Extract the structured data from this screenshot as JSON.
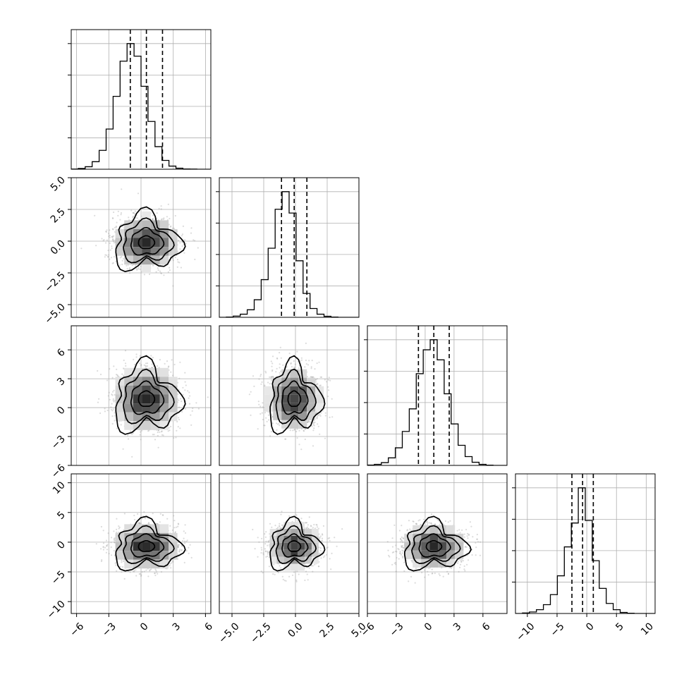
{
  "chart_data": {
    "type": "corner",
    "title": "",
    "parameters": [
      {
        "hist_range": [
          -6.5,
          6.5
        ],
        "mean": 0.5,
        "sd": 1.5,
        "quantiles": [
          -1.0,
          0.5,
          2.0
        ],
        "ticks": [
          -6,
          -3,
          0,
          3,
          6
        ],
        "tick_labels": [
          "−6",
          "−3",
          "0",
          "3",
          "6"
        ]
      },
      {
        "hist_range": [
          -6.0,
          5.0
        ],
        "mean": -0.1,
        "sd": 1.0,
        "quantiles": [
          -1.1,
          -0.1,
          0.9
        ],
        "ticks": [
          -5.0,
          -2.5,
          0.0,
          2.5,
          5.0
        ],
        "tick_labels": [
          "−5.0",
          "−2.5",
          "0.0",
          "2.5",
          "5.0"
        ]
      },
      {
        "hist_range": [
          -6.0,
          8.5
        ],
        "mean": 0.9,
        "sd": 1.6,
        "quantiles": [
          -0.7,
          0.9,
          2.5
        ],
        "ticks": [
          -6,
          -3,
          0,
          3,
          6
        ],
        "tick_labels": [
          "−6",
          "−3",
          "0",
          "3",
          "6"
        ]
      },
      {
        "hist_range": [
          -12.0,
          11.5
        ],
        "mean": -0.7,
        "sd": 1.8,
        "quantiles": [
          -2.5,
          -0.7,
          1.1
        ],
        "ticks": [
          -10,
          -5,
          0,
          5,
          10
        ],
        "tick_labels": [
          "−10",
          "−5",
          "0",
          "5",
          "10"
        ]
      }
    ],
    "marginal_histograms": [
      {
        "param": 0,
        "bin_edges": [
          -6.5,
          -5.85,
          -5.2,
          -4.55,
          -3.9,
          -3.25,
          -2.6,
          -1.95,
          -1.3,
          -0.65,
          0,
          0.65,
          1.3,
          1.95,
          2.6,
          3.25,
          3.9,
          4.55,
          5.2,
          5.85,
          6.5
        ],
        "counts": [
          0.001,
          0.006,
          0.02,
          0.06,
          0.15,
          0.32,
          0.58,
          0.86,
          1.0,
          0.9,
          0.66,
          0.38,
          0.18,
          0.07,
          0.025,
          0.008,
          0.002,
          0.001,
          0,
          0
        ]
      },
      {
        "param": 1,
        "bin_edges": [
          -6.0,
          -5.45,
          -4.9,
          -4.35,
          -3.8,
          -3.25,
          -2.7,
          -2.15,
          -1.6,
          -1.05,
          -0.5,
          0.05,
          0.6,
          1.15,
          1.7,
          2.25,
          2.8,
          3.35,
          3.9,
          4.45,
          5.0
        ],
        "counts": [
          0,
          0.002,
          0.01,
          0.025,
          0.06,
          0.14,
          0.3,
          0.55,
          0.86,
          1.0,
          0.83,
          0.45,
          0.19,
          0.07,
          0.025,
          0.008,
          0.002,
          0,
          0,
          0
        ]
      },
      {
        "param": 2,
        "bin_edges": [
          -6.0,
          -5.275,
          -4.55,
          -3.825,
          -3.1,
          -2.375,
          -1.65,
          -0.925,
          -0.2,
          0.525,
          1.25,
          1.975,
          2.7,
          3.425,
          4.15,
          4.875,
          5.6,
          6.325,
          7.05,
          7.775,
          8.5
        ],
        "counts": [
          0.003,
          0.008,
          0.022,
          0.06,
          0.14,
          0.27,
          0.45,
          0.73,
          0.92,
          1.0,
          0.84,
          0.57,
          0.33,
          0.16,
          0.07,
          0.025,
          0.008,
          0.002,
          0,
          0
        ]
      },
      {
        "param": 3,
        "bin_edges": [
          -12.0,
          -10.825,
          -9.65,
          -8.475,
          -7.3,
          -6.125,
          -4.95,
          -3.775,
          -2.6,
          -1.425,
          -0.25,
          0.925,
          2.1,
          3.275,
          4.45,
          5.625,
          6.8,
          7.975,
          9.15,
          10.325,
          11.5
        ],
        "counts": [
          0,
          0.004,
          0.012,
          0.03,
          0.07,
          0.15,
          0.3,
          0.53,
          0.72,
          1.0,
          0.74,
          0.42,
          0.2,
          0.08,
          0.03,
          0.008,
          0.002,
          0,
          0,
          0
        ]
      }
    ],
    "joint_densities": [
      {
        "x_param": 0,
        "y_param": 1,
        "x_center": 0.5,
        "y_center": -0.1,
        "contour_levels_sigma": [
          0.5,
          1.0,
          1.5,
          2.0
        ]
      },
      {
        "x_param": 0,
        "y_param": 2,
        "x_center": 0.5,
        "y_center": 0.9,
        "contour_levels_sigma": [
          0.5,
          1.0,
          1.5,
          2.0
        ]
      },
      {
        "x_param": 1,
        "y_param": 2,
        "x_center": -0.1,
        "y_center": 0.9,
        "contour_levels_sigma": [
          0.5,
          1.0,
          1.5,
          2.0
        ]
      },
      {
        "x_param": 0,
        "y_param": 3,
        "x_center": 0.5,
        "y_center": -0.7,
        "contour_levels_sigma": [
          0.5,
          1.0,
          1.5,
          2.0
        ]
      },
      {
        "x_param": 1,
        "y_param": 3,
        "x_center": -0.1,
        "y_center": -0.7,
        "contour_levels_sigma": [
          0.5,
          1.0,
          1.5,
          2.0
        ]
      },
      {
        "x_param": 2,
        "y_param": 3,
        "x_center": 0.9,
        "y_center": -0.7,
        "contour_levels_sigma": [
          0.5,
          1.0,
          1.5,
          2.0
        ]
      }
    ],
    "grid": true,
    "quantile_line_style": "dashed",
    "scatter_color": "#9a9a9a"
  }
}
